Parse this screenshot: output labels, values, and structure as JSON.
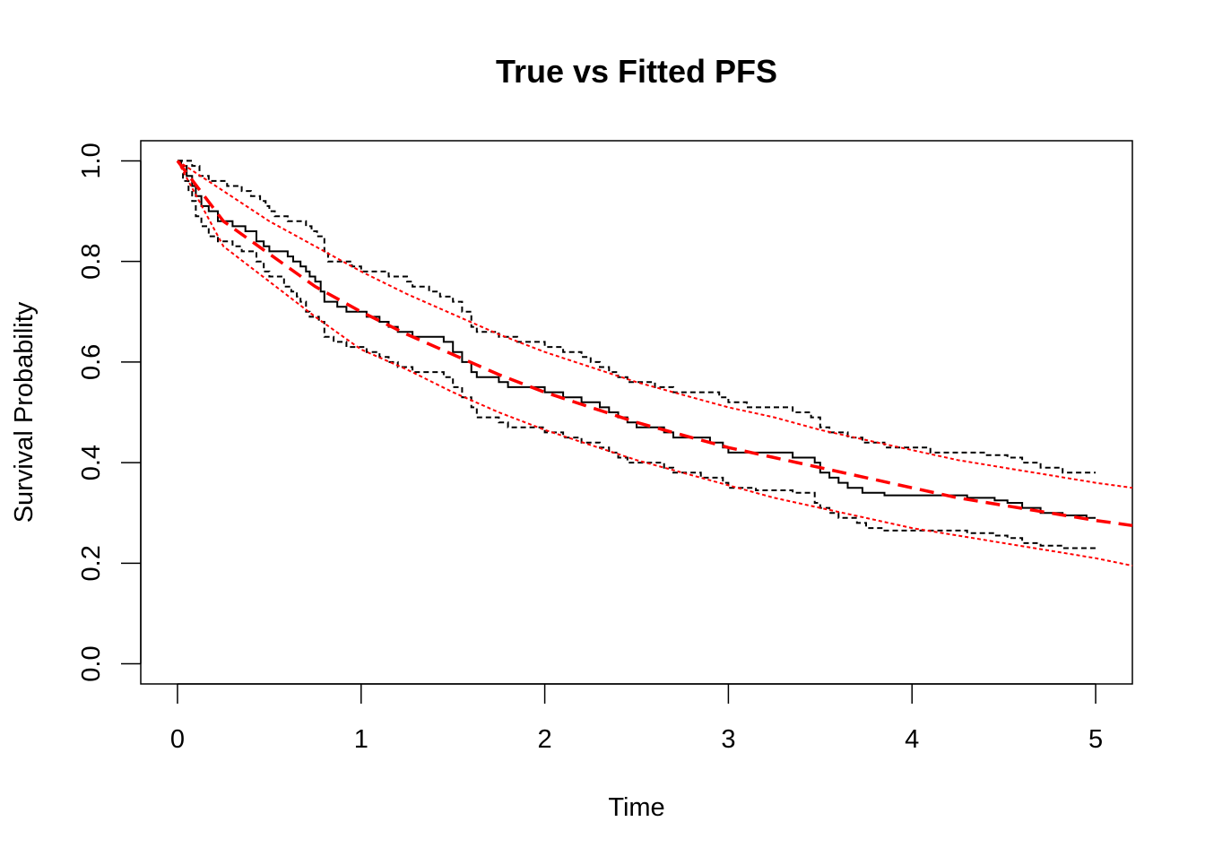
{
  "chart_data": {
    "type": "line",
    "title": "True vs Fitted PFS",
    "xlabel": "Time",
    "ylabel": "Survival Probability",
    "xlim": [
      -0.2,
      5.2
    ],
    "ylim": [
      -0.04,
      1.04
    ],
    "x_ticks": [
      0,
      1,
      2,
      3,
      4,
      5
    ],
    "x_tick_labels": [
      "0",
      "1",
      "2",
      "3",
      "4",
      "5"
    ],
    "y_ticks": [
      0.0,
      0.2,
      0.4,
      0.6,
      0.8,
      1.0
    ],
    "y_tick_labels": [
      "0.0",
      "0.2",
      "0.4",
      "0.6",
      "0.8",
      "1.0"
    ],
    "grid": false,
    "legend": "none",
    "series": [
      {
        "role": "km-estimate",
        "color": "#000000",
        "style": "solid",
        "step": true,
        "points": [
          [
            0,
            1.0
          ],
          [
            0.02,
            0.99
          ],
          [
            0.05,
            0.97
          ],
          [
            0.08,
            0.95
          ],
          [
            0.1,
            0.93
          ],
          [
            0.13,
            0.91
          ],
          [
            0.17,
            0.9
          ],
          [
            0.22,
            0.88
          ],
          [
            0.3,
            0.87
          ],
          [
            0.37,
            0.86
          ],
          [
            0.43,
            0.84
          ],
          [
            0.47,
            0.83
          ],
          [
            0.5,
            0.82
          ],
          [
            0.6,
            0.81
          ],
          [
            0.63,
            0.8
          ],
          [
            0.67,
            0.79
          ],
          [
            0.7,
            0.78
          ],
          [
            0.72,
            0.77
          ],
          [
            0.75,
            0.76
          ],
          [
            0.78,
            0.74
          ],
          [
            0.8,
            0.72
          ],
          [
            0.87,
            0.71
          ],
          [
            0.92,
            0.7
          ],
          [
            1.03,
            0.69
          ],
          [
            1.1,
            0.68
          ],
          [
            1.15,
            0.67
          ],
          [
            1.2,
            0.66
          ],
          [
            1.28,
            0.65
          ],
          [
            1.45,
            0.64
          ],
          [
            1.5,
            0.62
          ],
          [
            1.55,
            0.6
          ],
          [
            1.6,
            0.58
          ],
          [
            1.63,
            0.57
          ],
          [
            1.75,
            0.56
          ],
          [
            1.8,
            0.55
          ],
          [
            1.95,
            0.55
          ],
          [
            2.0,
            0.54
          ],
          [
            2.1,
            0.53
          ],
          [
            2.2,
            0.52
          ],
          [
            2.3,
            0.51
          ],
          [
            2.35,
            0.5
          ],
          [
            2.4,
            0.49
          ],
          [
            2.45,
            0.48
          ],
          [
            2.5,
            0.47
          ],
          [
            2.65,
            0.46
          ],
          [
            2.7,
            0.45
          ],
          [
            2.9,
            0.44
          ],
          [
            2.97,
            0.43
          ],
          [
            3.0,
            0.42
          ],
          [
            3.15,
            0.42
          ],
          [
            3.35,
            0.41
          ],
          [
            3.47,
            0.4
          ],
          [
            3.5,
            0.38
          ],
          [
            3.55,
            0.37
          ],
          [
            3.6,
            0.36
          ],
          [
            3.65,
            0.35
          ],
          [
            3.73,
            0.34
          ],
          [
            3.85,
            0.335
          ],
          [
            4.15,
            0.335
          ],
          [
            4.3,
            0.33
          ],
          [
            4.45,
            0.325
          ],
          [
            4.52,
            0.32
          ],
          [
            4.6,
            0.31
          ],
          [
            4.7,
            0.3
          ],
          [
            4.82,
            0.295
          ],
          [
            4.95,
            0.29
          ],
          [
            5.0,
            0.29
          ]
        ]
      },
      {
        "role": "km-upper-ci",
        "color": "#000000",
        "style": "dashed",
        "step": true,
        "points": [
          [
            0,
            1.0
          ],
          [
            0.05,
            1.0
          ],
          [
            0.08,
            0.99
          ],
          [
            0.12,
            0.97
          ],
          [
            0.17,
            0.96
          ],
          [
            0.27,
            0.95
          ],
          [
            0.35,
            0.94
          ],
          [
            0.4,
            0.93
          ],
          [
            0.45,
            0.92
          ],
          [
            0.48,
            0.91
          ],
          [
            0.5,
            0.9
          ],
          [
            0.53,
            0.89
          ],
          [
            0.6,
            0.88
          ],
          [
            0.7,
            0.87
          ],
          [
            0.73,
            0.86
          ],
          [
            0.76,
            0.85
          ],
          [
            0.8,
            0.82
          ],
          [
            0.82,
            0.8
          ],
          [
            0.95,
            0.79
          ],
          [
            1.0,
            0.78
          ],
          [
            1.15,
            0.77
          ],
          [
            1.25,
            0.76
          ],
          [
            1.28,
            0.75
          ],
          [
            1.37,
            0.74
          ],
          [
            1.43,
            0.73
          ],
          [
            1.5,
            0.72
          ],
          [
            1.55,
            0.7
          ],
          [
            1.6,
            0.67
          ],
          [
            1.63,
            0.66
          ],
          [
            1.75,
            0.65
          ],
          [
            1.85,
            0.64
          ],
          [
            2.0,
            0.63
          ],
          [
            2.1,
            0.62
          ],
          [
            2.2,
            0.61
          ],
          [
            2.25,
            0.6
          ],
          [
            2.3,
            0.59
          ],
          [
            2.35,
            0.58
          ],
          [
            2.4,
            0.57
          ],
          [
            2.45,
            0.56
          ],
          [
            2.6,
            0.55
          ],
          [
            2.7,
            0.54
          ],
          [
            2.95,
            0.53
          ],
          [
            3.0,
            0.52
          ],
          [
            3.1,
            0.51
          ],
          [
            3.35,
            0.5
          ],
          [
            3.45,
            0.49
          ],
          [
            3.5,
            0.47
          ],
          [
            3.55,
            0.46
          ],
          [
            3.65,
            0.45
          ],
          [
            3.73,
            0.44
          ],
          [
            3.85,
            0.43
          ],
          [
            4.1,
            0.42
          ],
          [
            4.25,
            0.42
          ],
          [
            4.4,
            0.415
          ],
          [
            4.52,
            0.41
          ],
          [
            4.6,
            0.4
          ],
          [
            4.7,
            0.39
          ],
          [
            4.82,
            0.38
          ],
          [
            5.0,
            0.38
          ]
        ]
      },
      {
        "role": "km-lower-ci",
        "color": "#000000",
        "style": "dashed",
        "step": true,
        "points": [
          [
            0,
            1.0
          ],
          [
            0.03,
            0.96
          ],
          [
            0.06,
            0.94
          ],
          [
            0.08,
            0.92
          ],
          [
            0.1,
            0.89
          ],
          [
            0.13,
            0.87
          ],
          [
            0.17,
            0.85
          ],
          [
            0.22,
            0.84
          ],
          [
            0.3,
            0.83
          ],
          [
            0.35,
            0.82
          ],
          [
            0.43,
            0.8
          ],
          [
            0.47,
            0.78
          ],
          [
            0.5,
            0.77
          ],
          [
            0.58,
            0.75
          ],
          [
            0.62,
            0.74
          ],
          [
            0.65,
            0.73
          ],
          [
            0.67,
            0.72
          ],
          [
            0.7,
            0.7
          ],
          [
            0.72,
            0.69
          ],
          [
            0.77,
            0.68
          ],
          [
            0.8,
            0.65
          ],
          [
            0.85,
            0.64
          ],
          [
            0.92,
            0.63
          ],
          [
            1.03,
            0.62
          ],
          [
            1.1,
            0.61
          ],
          [
            1.15,
            0.6
          ],
          [
            1.2,
            0.59
          ],
          [
            1.28,
            0.58
          ],
          [
            1.45,
            0.57
          ],
          [
            1.5,
            0.55
          ],
          [
            1.55,
            0.53
          ],
          [
            1.6,
            0.51
          ],
          [
            1.63,
            0.49
          ],
          [
            1.75,
            0.48
          ],
          [
            1.8,
            0.47
          ],
          [
            1.95,
            0.47
          ],
          [
            2.0,
            0.46
          ],
          [
            2.1,
            0.45
          ],
          [
            2.2,
            0.44
          ],
          [
            2.3,
            0.43
          ],
          [
            2.35,
            0.42
          ],
          [
            2.4,
            0.41
          ],
          [
            2.45,
            0.4
          ],
          [
            2.65,
            0.39
          ],
          [
            2.7,
            0.38
          ],
          [
            2.85,
            0.37
          ],
          [
            2.97,
            0.36
          ],
          [
            3.0,
            0.35
          ],
          [
            3.15,
            0.345
          ],
          [
            3.35,
            0.34
          ],
          [
            3.47,
            0.32
          ],
          [
            3.5,
            0.31
          ],
          [
            3.55,
            0.3
          ],
          [
            3.6,
            0.29
          ],
          [
            3.7,
            0.28
          ],
          [
            3.75,
            0.27
          ],
          [
            3.85,
            0.265
          ],
          [
            4.15,
            0.265
          ],
          [
            4.3,
            0.26
          ],
          [
            4.45,
            0.255
          ],
          [
            4.52,
            0.25
          ],
          [
            4.6,
            0.24
          ],
          [
            4.7,
            0.235
          ],
          [
            4.82,
            0.23
          ],
          [
            5.0,
            0.225
          ]
        ]
      },
      {
        "role": "fitted",
        "color": "#ff0000",
        "style": "long-dashed",
        "step": false,
        "points": [
          [
            0,
            1.0
          ],
          [
            0.25,
            0.88
          ],
          [
            0.5,
            0.815
          ],
          [
            0.75,
            0.75
          ],
          [
            1.0,
            0.7
          ],
          [
            1.25,
            0.655
          ],
          [
            1.5,
            0.615
          ],
          [
            1.75,
            0.575
          ],
          [
            2.0,
            0.54
          ],
          [
            2.25,
            0.51
          ],
          [
            2.5,
            0.48
          ],
          [
            2.75,
            0.455
          ],
          [
            3.0,
            0.43
          ],
          [
            3.25,
            0.41
          ],
          [
            3.5,
            0.39
          ],
          [
            3.75,
            0.37
          ],
          [
            4.0,
            0.35
          ],
          [
            4.25,
            0.33
          ],
          [
            4.5,
            0.315
          ],
          [
            4.75,
            0.3
          ],
          [
            5.0,
            0.285
          ],
          [
            5.2,
            0.275
          ]
        ]
      },
      {
        "role": "fitted-upper",
        "color": "#ff0000",
        "style": "dotted",
        "step": false,
        "points": [
          [
            0,
            1.0
          ],
          [
            0.25,
            0.94
          ],
          [
            0.5,
            0.88
          ],
          [
            0.75,
            0.83
          ],
          [
            1.0,
            0.78
          ],
          [
            1.25,
            0.735
          ],
          [
            1.5,
            0.695
          ],
          [
            1.75,
            0.655
          ],
          [
            2.0,
            0.62
          ],
          [
            2.25,
            0.59
          ],
          [
            2.5,
            0.56
          ],
          [
            2.75,
            0.535
          ],
          [
            3.0,
            0.51
          ],
          [
            3.25,
            0.49
          ],
          [
            3.5,
            0.465
          ],
          [
            3.75,
            0.445
          ],
          [
            4.0,
            0.425
          ],
          [
            4.25,
            0.405
          ],
          [
            4.5,
            0.39
          ],
          [
            4.75,
            0.375
          ],
          [
            5.0,
            0.36
          ],
          [
            5.2,
            0.35
          ]
        ]
      },
      {
        "role": "fitted-lower",
        "color": "#ff0000",
        "style": "dotted",
        "step": false,
        "points": [
          [
            0,
            1.0
          ],
          [
            0.25,
            0.83
          ],
          [
            0.5,
            0.76
          ],
          [
            0.75,
            0.69
          ],
          [
            1.0,
            0.625
          ],
          [
            1.25,
            0.585
          ],
          [
            1.5,
            0.54
          ],
          [
            1.75,
            0.5
          ],
          [
            2.0,
            0.465
          ],
          [
            2.25,
            0.435
          ],
          [
            2.5,
            0.405
          ],
          [
            2.75,
            0.38
          ],
          [
            3.0,
            0.355
          ],
          [
            3.25,
            0.33
          ],
          [
            3.5,
            0.31
          ],
          [
            3.75,
            0.29
          ],
          [
            4.0,
            0.27
          ],
          [
            4.25,
            0.255
          ],
          [
            4.5,
            0.24
          ],
          [
            4.75,
            0.225
          ],
          [
            5.0,
            0.21
          ],
          [
            5.2,
            0.195
          ]
        ]
      }
    ]
  }
}
